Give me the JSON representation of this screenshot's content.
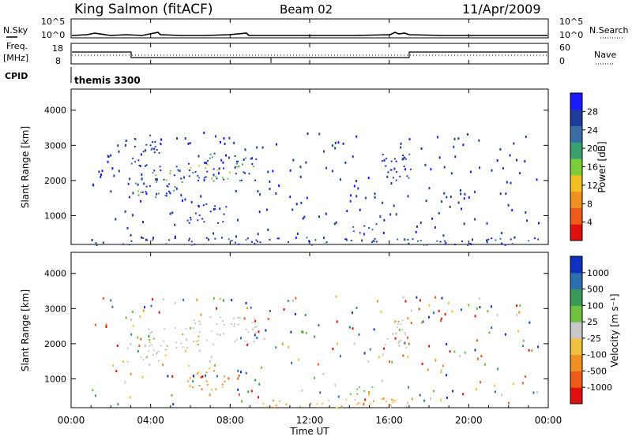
{
  "header": {
    "title": "King Salmon (fitACF)",
    "beam": "Beam 02",
    "date": "11/Apr/2009"
  },
  "status_panels": {
    "nsky_label": "N.Sky",
    "nsky_ticks": [
      "10^5",
      "10^0"
    ],
    "nsearch_label": "N.Search",
    "nsearch_ticks": [
      "10^5",
      "10^0"
    ],
    "freq_label": "Freq.",
    "freq_unit": "[MHz]",
    "freq_ticks": [
      "18",
      "8"
    ],
    "nave_label": "Nave",
    "nave_ticks": [
      "60",
      "0"
    ],
    "cpid_label": "CPID",
    "cpid_value": "themis 3300"
  },
  "x_axis": {
    "label": "Time UT",
    "ticks": [
      "00:00",
      "04:00",
      "08:00",
      "12:00",
      "16:00",
      "20:00",
      "00:00"
    ]
  },
  "colors": {
    "frame": "#000000",
    "background": "#ffffff"
  },
  "chart_data": [
    {
      "type": "heatmap",
      "panel": "power",
      "ylabel": "Slant Range [km]",
      "yticks": [
        1000,
        2000,
        3000,
        4000
      ],
      "ylim": [
        180,
        4600
      ],
      "xlim": [
        0,
        24
      ],
      "colorbar": {
        "label": "Power [dB]",
        "ticks": [
          "4",
          "8",
          "12",
          "16",
          "20",
          "24",
          "28"
        ],
        "colors": [
          "#1a1aff",
          "#1e3c9c",
          "#3a6fa6",
          "#3aa06e",
          "#7ccc3c",
          "#f0c020",
          "#f09020",
          "#ee5a1a",
          "#e01010"
        ]
      },
      "regions": [
        {
          "t0": 2.8,
          "t1": 5.2,
          "r0": 1500,
          "r1": 2000,
          "level": "mid"
        },
        {
          "t0": 3.5,
          "t1": 6.5,
          "r0": 1900,
          "r1": 2500,
          "level": "mid"
        },
        {
          "t0": 6.0,
          "t1": 9.3,
          "r0": 2000,
          "r1": 2800,
          "level": "mid"
        },
        {
          "t0": 3.0,
          "t1": 4.5,
          "r0": 2400,
          "r1": 3400,
          "level": "low"
        },
        {
          "t0": 5.8,
          "t1": 7.8,
          "r0": 800,
          "r1": 1400,
          "level": "low"
        },
        {
          "t0": 14.1,
          "t1": 15.4,
          "r0": 500,
          "r1": 850,
          "level": "low"
        },
        {
          "t0": 15.6,
          "t1": 17.1,
          "r0": 1900,
          "r1": 2800,
          "level": "low"
        },
        {
          "t0": 1.0,
          "t1": 23.5,
          "r0": 180,
          "r1": 400,
          "level": "low"
        }
      ]
    },
    {
      "type": "heatmap",
      "panel": "velocity",
      "ylabel": "Slant Range [km]",
      "yticks": [
        1000,
        2000,
        3000,
        4000
      ],
      "ylim": [
        180,
        4600
      ],
      "xlim": [
        0,
        24
      ],
      "colorbar": {
        "label": "Velocity [m s⁻¹]",
        "ticks": [
          "1000",
          "500",
          "100",
          "25",
          "-25",
          "-100",
          "-500",
          "-1000"
        ],
        "colors": [
          "#1030c0",
          "#2e6fb0",
          "#3a9a5a",
          "#70c040",
          "#c8c8c8",
          "#f0c040",
          "#f09020",
          "#ee5a1a",
          "#e01010"
        ]
      },
      "regions": [
        {
          "t0": 2.8,
          "t1": 5.2,
          "r0": 1500,
          "r1": 2000,
          "vel": "grey"
        },
        {
          "t0": 3.5,
          "t1": 6.5,
          "r0": 1900,
          "r1": 2500,
          "vel": "grey"
        },
        {
          "t0": 6.0,
          "t1": 9.3,
          "r0": 2000,
          "r1": 2800,
          "vel": "grey"
        },
        {
          "t0": 5.8,
          "t1": 7.8,
          "r0": 700,
          "r1": 1400,
          "vel": "orange"
        },
        {
          "t0": 14.0,
          "t1": 15.2,
          "r0": 500,
          "r1": 800,
          "vel": "green"
        },
        {
          "t0": 15.7,
          "t1": 17.0,
          "r0": 1900,
          "r1": 2700,
          "vel": "grey"
        },
        {
          "t0": 9.5,
          "t1": 17.0,
          "r0": 180,
          "r1": 450,
          "vel": "yellow"
        }
      ]
    }
  ]
}
